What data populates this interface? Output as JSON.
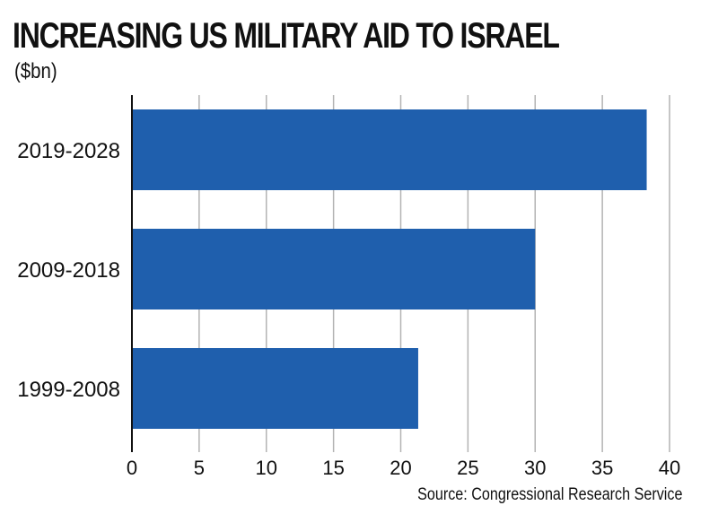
{
  "chart_data": {
    "type": "bar",
    "orientation": "horizontal",
    "title": "INCREASING US MILITARY AID TO ISRAEL",
    "subtitle": "($bn)",
    "source": "Source: Congressional Research Service",
    "categories": [
      "2019-2028",
      "2009-2018",
      "1999-2008"
    ],
    "values": [
      38.3,
      30.0,
      21.3
    ],
    "xlim": [
      0,
      40
    ],
    "xticks": [
      0,
      5,
      10,
      15,
      20,
      25,
      30,
      35,
      40
    ],
    "grid": true,
    "bar_color": "#1f5fad",
    "grid_color": "#b3b3b3"
  }
}
